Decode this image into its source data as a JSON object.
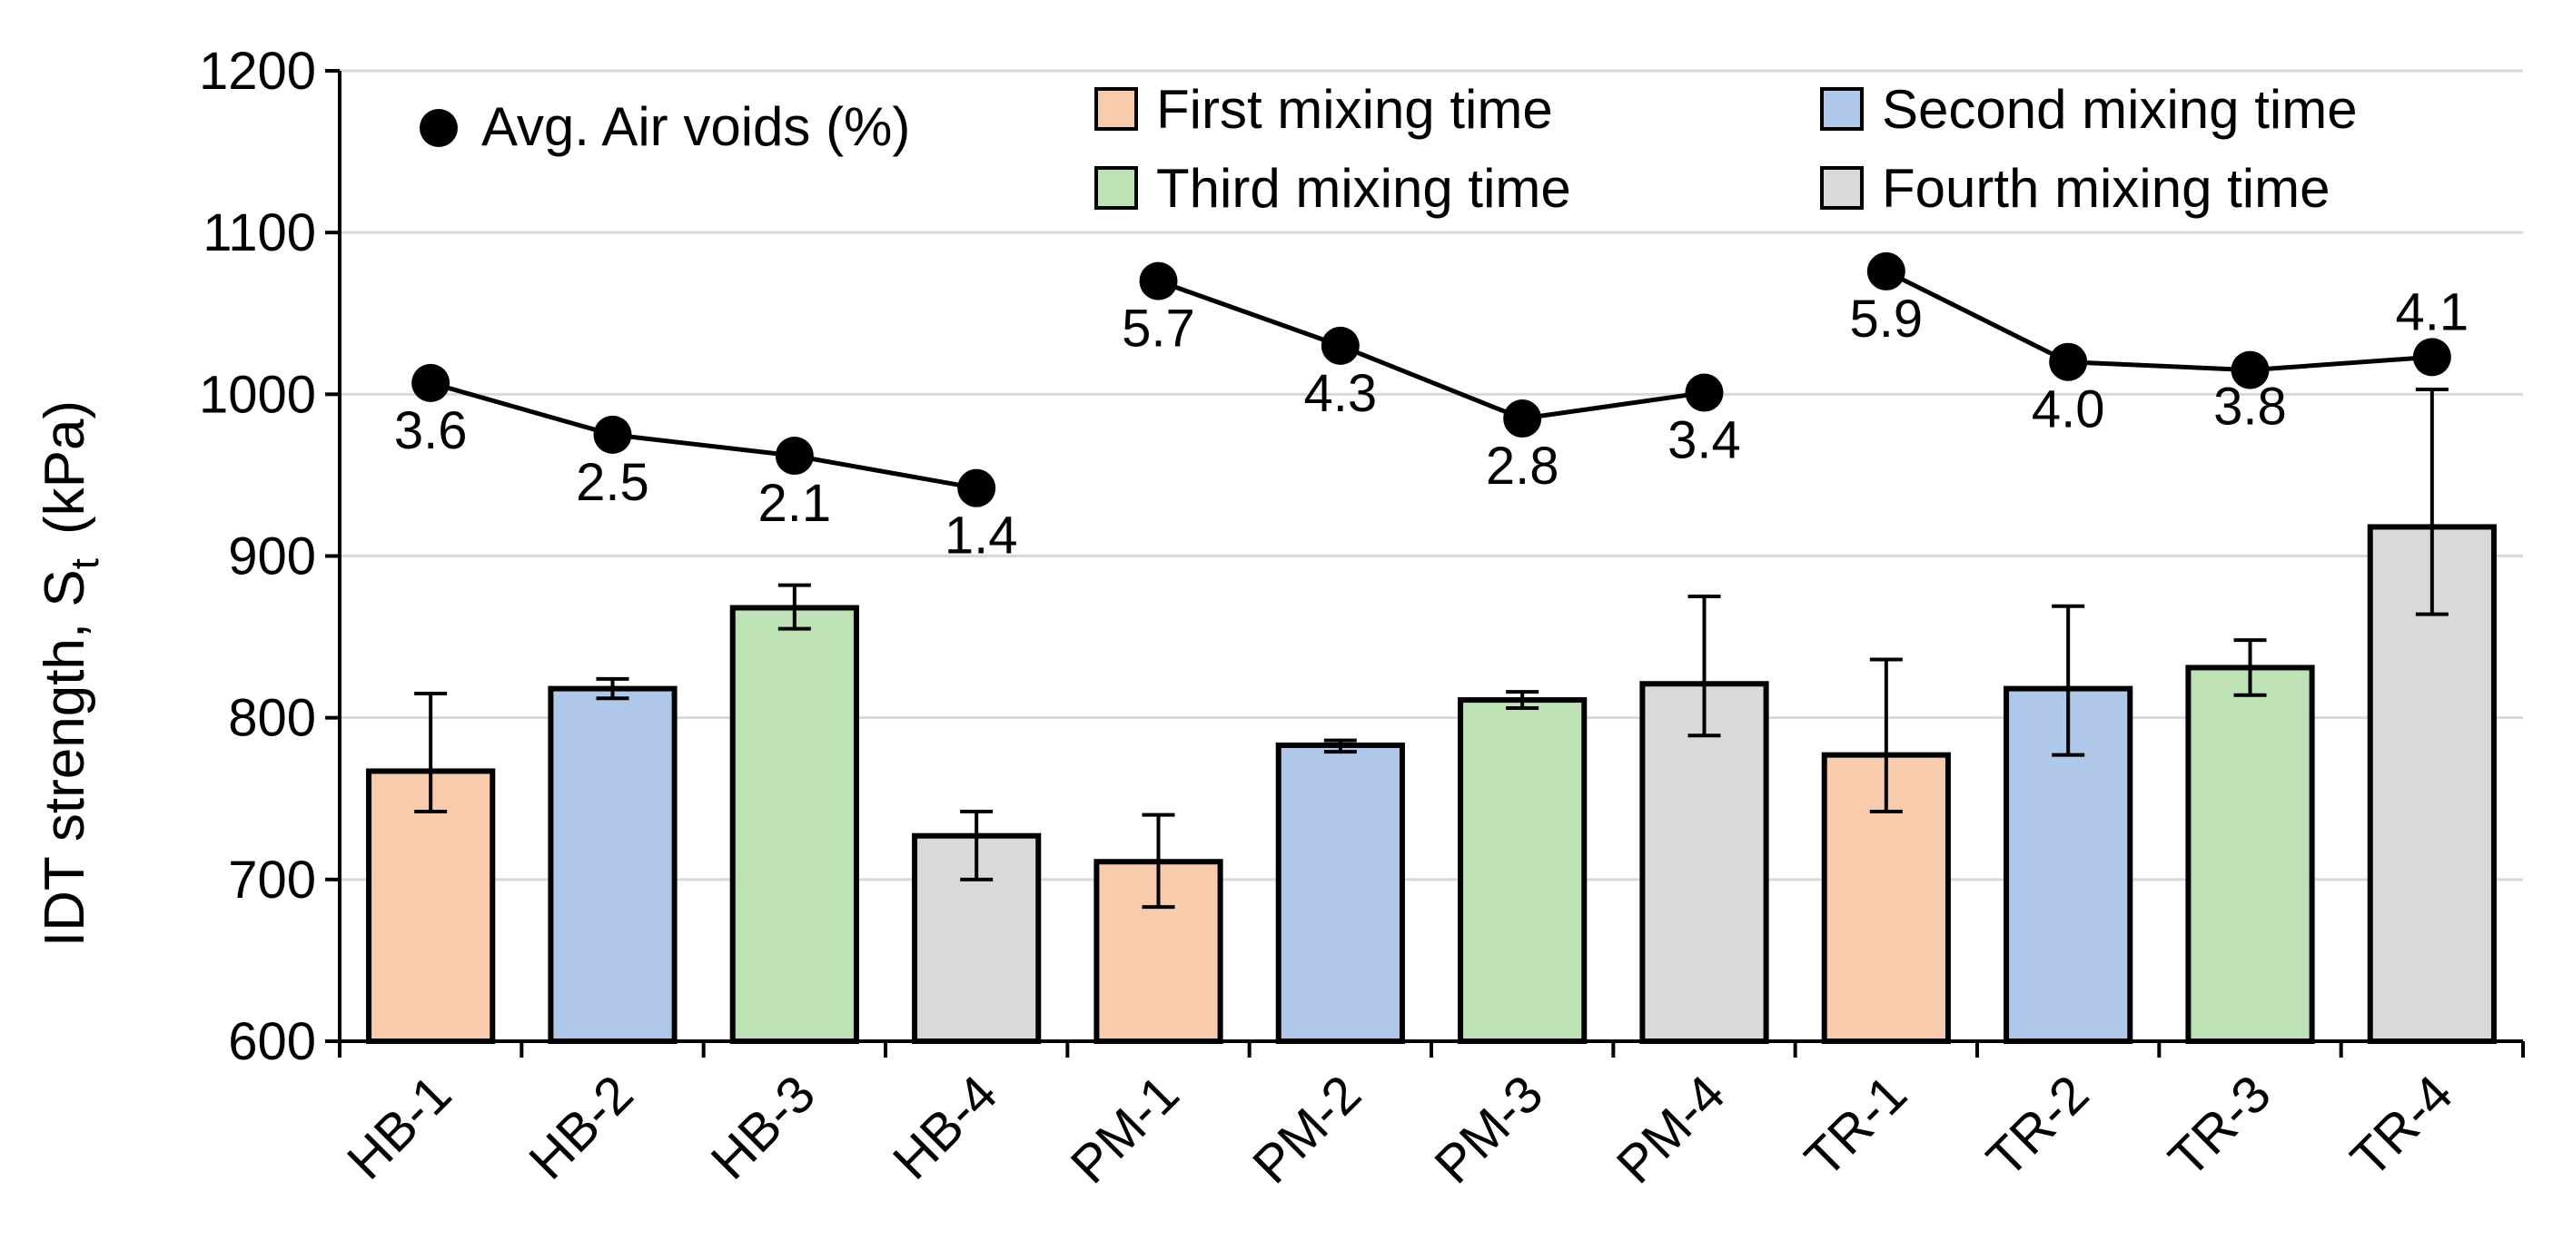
{
  "chart_data": {
    "type": "bar",
    "ylabel_main": "IDT strength, S",
    "ylabel_sub": "t",
    "ylabel_unit": "(kPa)",
    "ylim": [
      600,
      1200
    ],
    "yticks": [
      600,
      700,
      800,
      900,
      1000,
      1100,
      1200
    ],
    "grid": true,
    "categories": [
      "HB-1",
      "HB-2",
      "HB-3",
      "HB-4",
      "PM-1",
      "PM-2",
      "PM-3",
      "PM-4",
      "TR-1",
      "TR-2",
      "TR-3",
      "TR-4"
    ],
    "values": [
      767,
      818,
      868,
      727,
      711,
      783,
      811,
      821,
      777,
      818,
      831,
      918
    ],
    "error_low": [
      742,
      812,
      855,
      700,
      683,
      779,
      806,
      789,
      742,
      777,
      814,
      864
    ],
    "error_high": [
      815,
      824,
      882,
      742,
      740,
      786,
      816,
      875,
      836,
      869,
      848,
      1003
    ],
    "bar_mixing_time": [
      "First",
      "Second",
      "Third",
      "Fourth",
      "First",
      "Second",
      "Third",
      "Fourth",
      "First",
      "Second",
      "Third",
      "Fourth"
    ],
    "series": [
      {
        "name": "First mixing time",
        "key": "First",
        "color": "#F9CBAD"
      },
      {
        "name": "Second mixing time",
        "key": "Second",
        "color": "#AFC8E9"
      },
      {
        "name": "Third mixing time",
        "key": "Third",
        "color": "#BCE2B5"
      },
      {
        "name": "Fourth mixing time",
        "key": "Fourth",
        "color": "#D9D9D9"
      }
    ],
    "air_voids": {
      "name": "Avg. Air voids (%)",
      "groups": [
        {
          "points": [
            1007,
            975,
            962,
            942
          ],
          "labels": [
            "3.6",
            "2.5",
            "2.1",
            "1.4"
          ]
        },
        {
          "points": [
            1070,
            1030,
            985,
            1001
          ],
          "labels": [
            "5.7",
            "4.3",
            "2.8",
            "3.4"
          ]
        },
        {
          "points": [
            1076,
            1020,
            1015,
            1023
          ],
          "labels": [
            "5.9",
            "4.0",
            "3.8",
            "4.1"
          ]
        }
      ]
    }
  }
}
